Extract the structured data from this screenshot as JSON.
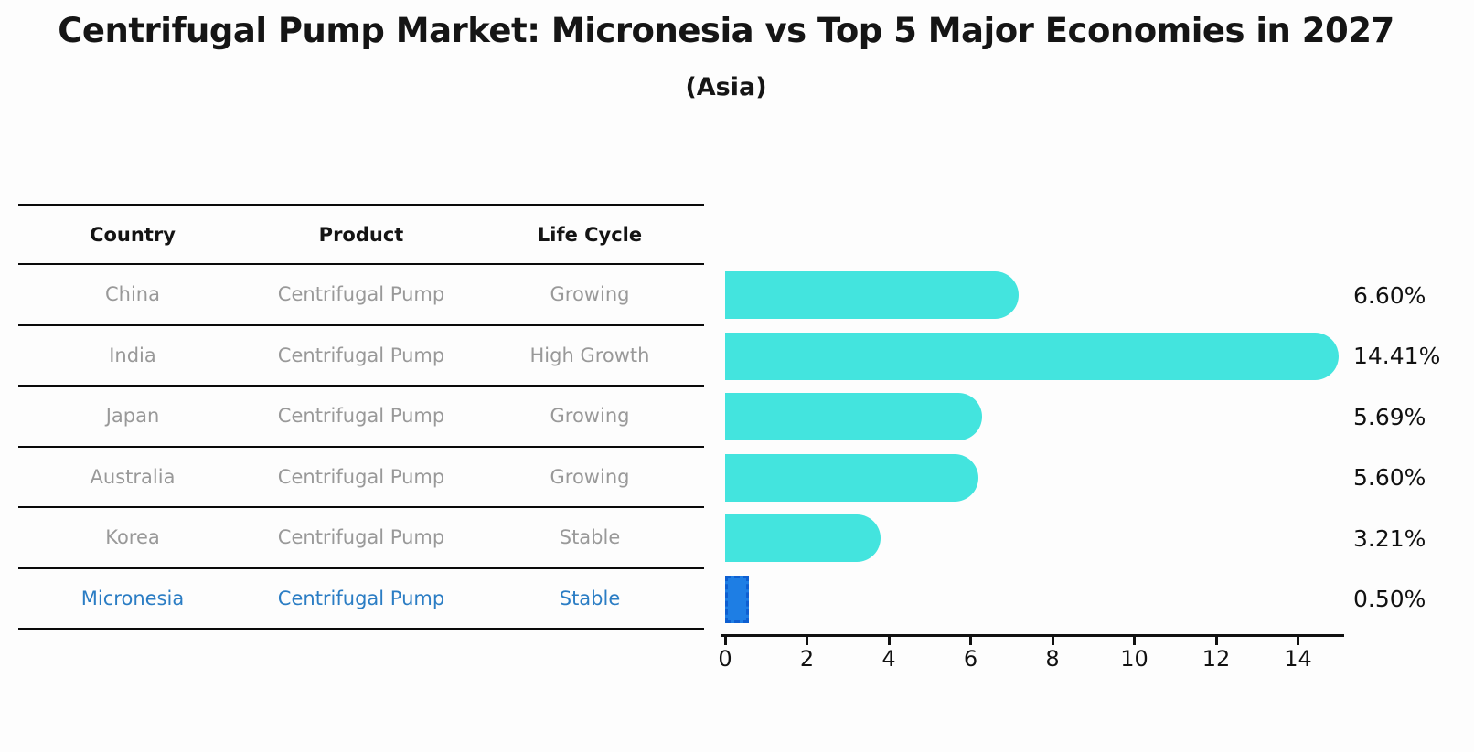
{
  "title": "Centrifugal Pump Market: Micronesia vs Top 5 Major Economies in 2027",
  "subtitle": "(Asia)",
  "table": {
    "headers": [
      "Country",
      "Product",
      "Life Cycle"
    ],
    "rows": [
      {
        "country": "China",
        "product": "Centrifugal Pump",
        "life_cycle": "Growing",
        "highlight": false
      },
      {
        "country": "India",
        "product": "Centrifugal Pump",
        "life_cycle": "High Growth",
        "highlight": false
      },
      {
        "country": "Japan",
        "product": "Centrifugal Pump",
        "life_cycle": "Growing",
        "highlight": false
      },
      {
        "country": "Australia",
        "product": "Centrifugal Pump",
        "life_cycle": "Growing",
        "highlight": false
      },
      {
        "country": "Korea",
        "product": "Centrifugal Pump",
        "life_cycle": "Stable",
        "highlight": false
      },
      {
        "country": "Micronesia",
        "product": "Centrifugal Pump",
        "life_cycle": "Stable",
        "highlight": true
      }
    ]
  },
  "chart_data": {
    "type": "bar",
    "orientation": "horizontal",
    "title": "Centrifugal Pump Market: Micronesia vs Top 5 Major Economies in 2027",
    "subtitle": "(Asia)",
    "categories": [
      "China",
      "India",
      "Japan",
      "Australia",
      "Korea",
      "Micronesia"
    ],
    "values": [
      6.6,
      14.41,
      5.69,
      5.6,
      3.21,
      0.5
    ],
    "value_labels": [
      "6.60%",
      "14.41%",
      "5.69%",
      "5.60%",
      "3.21%",
      "0.50%"
    ],
    "x_ticks": [
      0,
      2,
      4,
      6,
      8,
      10,
      12,
      14
    ],
    "xlim": [
      0,
      15.1
    ],
    "grid": false,
    "legend": false,
    "highlight_index": 5,
    "bar_color": "#43E4DE",
    "highlight_color": "#1E7EE4",
    "highlight_border": "#0E5FD1"
  },
  "colors": {
    "background": "#fdfdfd",
    "table_text": "#999999",
    "highlight_text": "#2B7DC4",
    "header_text": "#141414",
    "axis": "#111111"
  }
}
